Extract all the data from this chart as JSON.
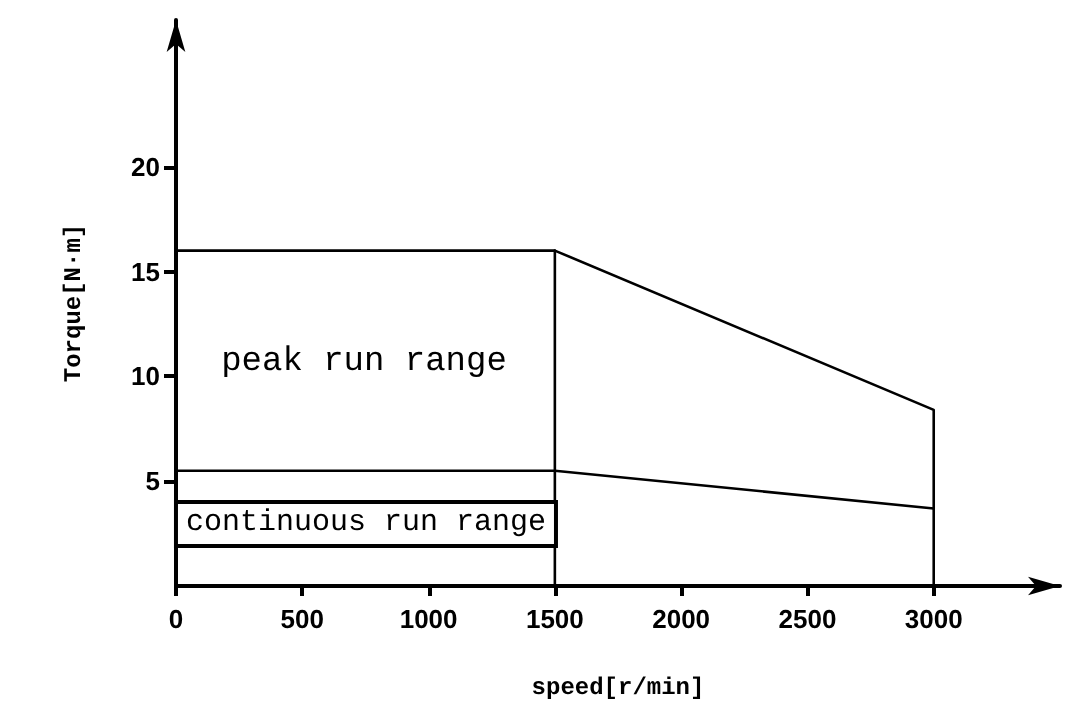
{
  "chart_data": {
    "type": "line",
    "xlabel": "speed[r/min]",
    "ylabel": "Torque[N·m]",
    "xlim": [
      0,
      3500
    ],
    "ylim": [
      0,
      27
    ],
    "xticks": [
      0,
      500,
      1000,
      1500,
      2000,
      2500,
      3000
    ],
    "yticks": [
      5,
      10,
      15,
      20
    ],
    "grid": false,
    "marker": "none",
    "line_style": "solid",
    "series": [
      {
        "color": "#000000",
        "x": [
          0,
          1500,
          3000,
          3000
        ],
        "values": [
          16,
          16,
          8.4,
          0
        ]
      },
      {
        "color": "#000000",
        "x": [
          0,
          1500,
          3000
        ],
        "values": [
          5.5,
          5.5,
          3.7
        ]
      },
      {
        "color": "#000000",
        "x": [
          1500,
          1500
        ],
        "values": [
          0,
          16
        ]
      }
    ],
    "annotations": [
      "peak run range",
      "continuous run range"
    ]
  }
}
